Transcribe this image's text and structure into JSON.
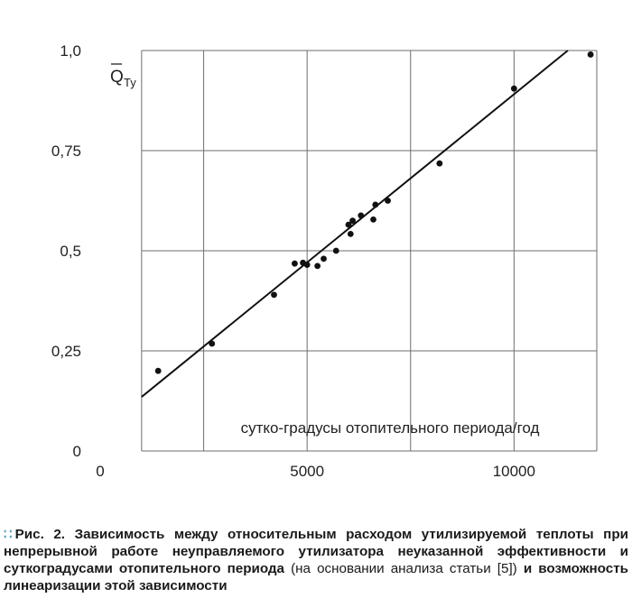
{
  "chart_data": {
    "type": "scatter",
    "y_axis_symbol": "Q",
    "y_axis_symbol_subscript": "Ту",
    "xlabel": "сутко-градусы отопительного периода/год",
    "xlim": [
      0,
      12000
    ],
    "ylim": [
      0,
      1.0
    ],
    "x_ticks": [
      0,
      5000,
      10000
    ],
    "x_tick_labels": [
      "0",
      "5000",
      "10000"
    ],
    "x_grid": [
      1000,
      2500,
      5000,
      7500,
      10000,
      12000
    ],
    "y_ticks": [
      0,
      0.25,
      0.5,
      0.75,
      1.0
    ],
    "y_tick_labels": [
      "0",
      "0,25",
      "0,5",
      "0,75",
      "1,0"
    ],
    "grid": true,
    "points": [
      {
        "x": 1400,
        "y": 0.2
      },
      {
        "x": 2700,
        "y": 0.268
      },
      {
        "x": 4200,
        "y": 0.39
      },
      {
        "x": 4700,
        "y": 0.468
      },
      {
        "x": 4900,
        "y": 0.47
      },
      {
        "x": 5000,
        "y": 0.465
      },
      {
        "x": 5250,
        "y": 0.462
      },
      {
        "x": 5400,
        "y": 0.48
      },
      {
        "x": 5700,
        "y": 0.5
      },
      {
        "x": 6000,
        "y": 0.565
      },
      {
        "x": 6050,
        "y": 0.542
      },
      {
        "x": 6100,
        "y": 0.575
      },
      {
        "x": 6300,
        "y": 0.588
      },
      {
        "x": 6600,
        "y": 0.578
      },
      {
        "x": 6650,
        "y": 0.615
      },
      {
        "x": 6950,
        "y": 0.625
      },
      {
        "x": 8200,
        "y": 0.718
      },
      {
        "x": 10000,
        "y": 0.905
      },
      {
        "x": 11850,
        "y": 0.99
      }
    ],
    "fit_line": [
      {
        "x": 1000,
        "y": 0.135
      },
      {
        "x": 11300,
        "y": 1.0
      }
    ]
  },
  "caption": {
    "prefix": "Рис. 2.",
    "bold_text": "Зависимость между относительным расходом утилизируемой теплоты при непрерывной работе неуправляемого утилизатора неуказанной эффективности и суткоградусами отопительного периода",
    "normal_text": "(на основании анализа статьи [5])",
    "tail_text": "и возможность линеаризации этой зависимости"
  },
  "colors": {
    "accent_dots": "#5aa9c9",
    "line": "#111111",
    "grid": "#6e6e6e"
  }
}
